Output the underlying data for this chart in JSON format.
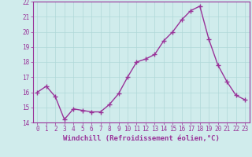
{
  "x": [
    0,
    1,
    2,
    3,
    4,
    5,
    6,
    7,
    8,
    9,
    10,
    11,
    12,
    13,
    14,
    15,
    16,
    17,
    18,
    19,
    20,
    21,
    22,
    23
  ],
  "y": [
    16.0,
    16.4,
    15.7,
    14.2,
    14.9,
    14.8,
    14.7,
    14.7,
    15.2,
    15.9,
    17.0,
    18.0,
    18.2,
    18.5,
    19.4,
    20.0,
    20.8,
    21.4,
    21.7,
    19.5,
    17.8,
    16.7,
    15.8,
    15.5
  ],
  "line_color": "#993399",
  "marker": "+",
  "marker_size": 4,
  "linewidth": 1.0,
  "xlabel": "Windchill (Refroidissement éolien,°C)",
  "xlabel_fontsize": 6.5,
  "xlim": [
    -0.5,
    23.5
  ],
  "ylim": [
    14,
    22
  ],
  "yticks": [
    14,
    15,
    16,
    17,
    18,
    19,
    20,
    21,
    22
  ],
  "xticks": [
    0,
    1,
    2,
    3,
    4,
    5,
    6,
    7,
    8,
    9,
    10,
    11,
    12,
    13,
    14,
    15,
    16,
    17,
    18,
    19,
    20,
    21,
    22,
    23
  ],
  "xtick_labels": [
    "0",
    "1",
    "2",
    "3",
    "4",
    "5",
    "6",
    "7",
    "8",
    "9",
    "10",
    "11",
    "12",
    "13",
    "14",
    "15",
    "16",
    "17",
    "18",
    "19",
    "20",
    "21",
    "22",
    "23"
  ],
  "grid_color": "#b0d8d8",
  "background_color": "#d0ecec",
  "tick_color": "#993399",
  "tick_fontsize": 5.5,
  "spine_color": "#993399",
  "xlabel_color": "#993399"
}
